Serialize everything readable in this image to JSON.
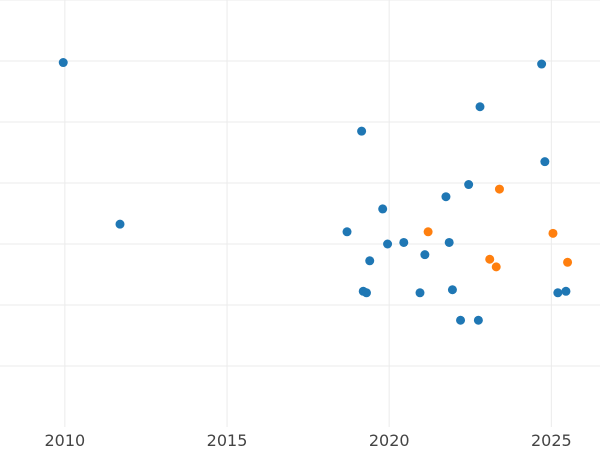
{
  "chart_data": {
    "type": "scatter",
    "title": "",
    "xlabel": "",
    "ylabel": "",
    "xlim": [
      2008.0,
      2026.5
    ],
    "ylim": [
      0,
      14
    ],
    "x_ticks": [
      2010,
      2015,
      2020,
      2025
    ],
    "x_tick_labels": [
      "2010",
      "2015",
      "2020",
      "2025"
    ],
    "y_gridlines": [
      2,
      4,
      6,
      8,
      10,
      12,
      14
    ],
    "grid": true,
    "legend": "none",
    "series": [
      {
        "color": "#1f77b4",
        "points": [
          {
            "x": 2009.95,
            "y": 11.95
          },
          {
            "x": 2011.7,
            "y": 6.65
          },
          {
            "x": 2018.7,
            "y": 6.4
          },
          {
            "x": 2019.15,
            "y": 9.7
          },
          {
            "x": 2019.2,
            "y": 4.45
          },
          {
            "x": 2019.3,
            "y": 4.4
          },
          {
            "x": 2019.4,
            "y": 5.45
          },
          {
            "x": 2019.8,
            "y": 7.15
          },
          {
            "x": 2019.95,
            "y": 6.0
          },
          {
            "x": 2020.45,
            "y": 6.05
          },
          {
            "x": 2020.95,
            "y": 4.4
          },
          {
            "x": 2021.1,
            "y": 5.65
          },
          {
            "x": 2021.75,
            "y": 7.55
          },
          {
            "x": 2021.85,
            "y": 6.05
          },
          {
            "x": 2021.95,
            "y": 4.5
          },
          {
            "x": 2022.2,
            "y": 3.5
          },
          {
            "x": 2022.45,
            "y": 7.95
          },
          {
            "x": 2022.75,
            "y": 3.5
          },
          {
            "x": 2022.8,
            "y": 10.5
          },
          {
            "x": 2024.7,
            "y": 11.9
          },
          {
            "x": 2024.8,
            "y": 8.7
          },
          {
            "x": 2025.2,
            "y": 4.4
          },
          {
            "x": 2025.45,
            "y": 4.45
          }
        ]
      },
      {
        "color": "#ff7f0e",
        "points": [
          {
            "x": 2021.2,
            "y": 6.4
          },
          {
            "x": 2023.1,
            "y": 5.5
          },
          {
            "x": 2023.3,
            "y": 5.25
          },
          {
            "x": 2023.4,
            "y": 7.8
          },
          {
            "x": 2025.05,
            "y": 6.35
          },
          {
            "x": 2025.5,
            "y": 5.4
          }
        ]
      }
    ]
  }
}
